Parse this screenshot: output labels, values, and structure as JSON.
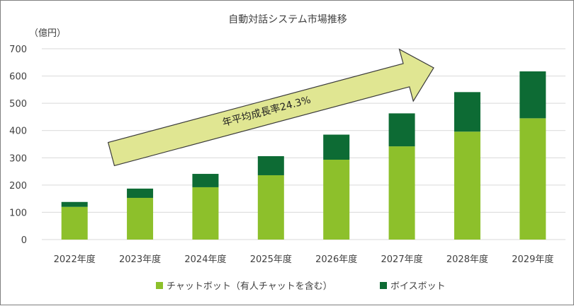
{
  "chart_data": {
    "type": "bar",
    "stacked": true,
    "title": "自動対話システム市場推移",
    "ylabel": "（億円）",
    "xlabel": "",
    "ylim": [
      0,
      700
    ],
    "yticks": [
      0,
      100,
      200,
      300,
      400,
      500,
      600,
      700
    ],
    "grid": true,
    "legend_position": "bottom",
    "categories": [
      "2022年度",
      "2023年度",
      "2024年度",
      "2025年度",
      "2026年度",
      "2027年度",
      "2028年度",
      "2029年度"
    ],
    "series": [
      {
        "name": "チャットボット（有人チャットを含む）",
        "color": "#8dc02b",
        "values": [
          120,
          153,
          192,
          236,
          293,
          342,
          396,
          445
        ]
      },
      {
        "name": "ボイスボット",
        "color": "#0d6b34",
        "values": [
          18,
          34,
          49,
          70,
          92,
          121,
          145,
          172
        ]
      }
    ],
    "annotation": {
      "text": "年平均成長率24.3%",
      "fill": "#e0e692",
      "stroke": "#3a3a3a"
    }
  }
}
